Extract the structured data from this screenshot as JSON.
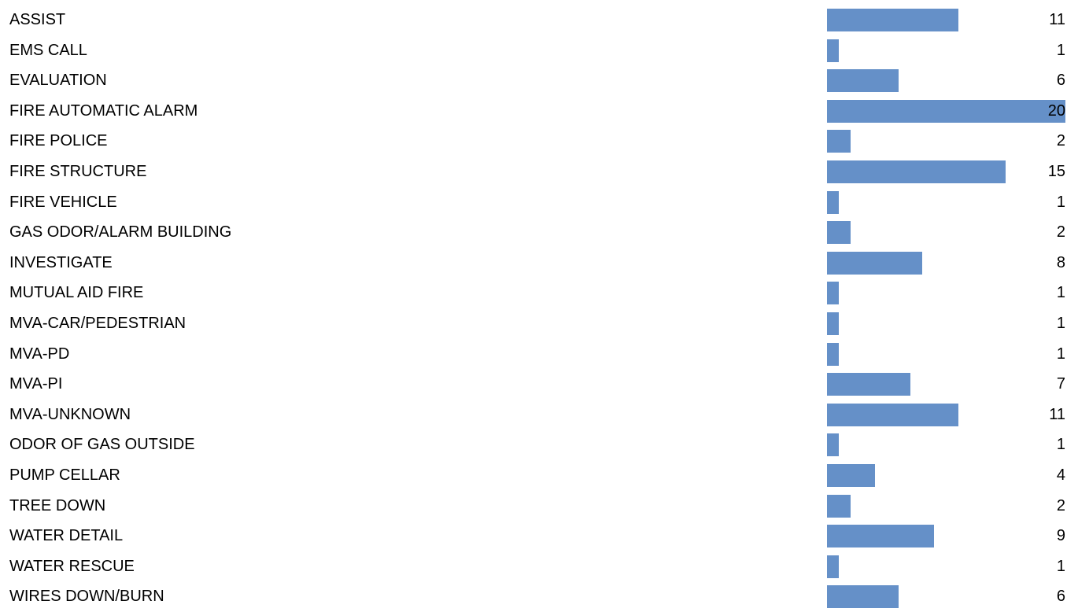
{
  "chart_data": {
    "type": "bar",
    "orientation": "horizontal",
    "title": "",
    "xlabel": "",
    "ylabel": "",
    "xlim": [
      0,
      20
    ],
    "grid": false,
    "legend": "none",
    "bar_color": "#6590c8",
    "categories": [
      "ASSIST",
      "EMS CALL",
      "EVALUATION",
      "FIRE AUTOMATIC ALARM",
      "FIRE POLICE",
      "FIRE STRUCTURE",
      "FIRE VEHICLE",
      "GAS ODOR/ALARM BUILDING",
      "INVESTIGATE",
      "MUTUAL AID FIRE",
      "MVA-CAR/PEDESTRIAN",
      "MVA-PD",
      "MVA-PI",
      "MVA-UNKNOWN",
      "ODOR OF GAS OUTSIDE",
      "PUMP CELLAR",
      "TREE DOWN",
      "WATER DETAIL",
      "WATER RESCUE",
      "WIRES DOWN/BURN"
    ],
    "values": [
      11,
      1,
      6,
      20,
      2,
      15,
      1,
      2,
      8,
      1,
      1,
      1,
      7,
      11,
      1,
      4,
      2,
      9,
      1,
      6
    ]
  }
}
